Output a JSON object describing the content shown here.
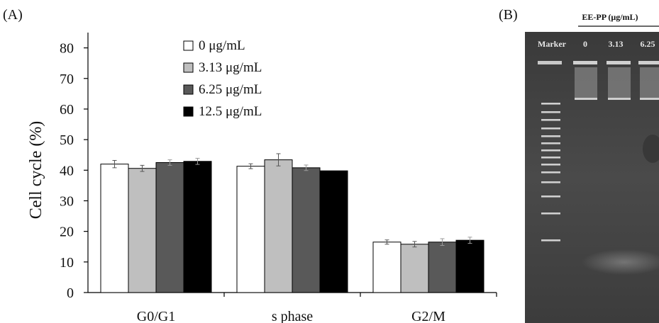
{
  "chart_data": [
    {
      "panel_label": "(A)",
      "type": "bar",
      "ylabel": "Cell cycle (%)",
      "xlabel": "",
      "title": "",
      "ylim": [
        0,
        85
      ],
      "yticks": [
        0,
        10,
        20,
        30,
        40,
        50,
        60,
        70,
        80
      ],
      "categories": [
        "G0/G1",
        "s phase",
        "G2/M"
      ],
      "legend_position": "top-center",
      "grid": false,
      "series": [
        {
          "name": "0 μg/mL",
          "color": "#ffffff",
          "values": [
            42.0,
            41.3,
            16.5
          ],
          "errors": [
            1.2,
            0.8,
            0.7
          ]
        },
        {
          "name": "3.13 μg/mL",
          "color": "#bfbfbf",
          "values": [
            40.6,
            43.4,
            15.8
          ],
          "errors": [
            1.0,
            2.0,
            0.9
          ]
        },
        {
          "name": "6.25 μg/mL",
          "color": "#595959",
          "values": [
            42.5,
            40.8,
            16.5
          ],
          "errors": [
            0.9,
            0.9,
            1.1
          ]
        },
        {
          "name": "12.5 μg/mL",
          "color": "#000000",
          "values": [
            42.9,
            39.8,
            17.1
          ],
          "errors": [
            1.0,
            0.0,
            1.0
          ]
        }
      ]
    }
  ],
  "gel_panel": {
    "panel_label": "(B)",
    "header": "EE-PP (μg/mL)",
    "lane_labels": [
      "Marker",
      "0",
      "3.13",
      "6.25"
    ]
  }
}
